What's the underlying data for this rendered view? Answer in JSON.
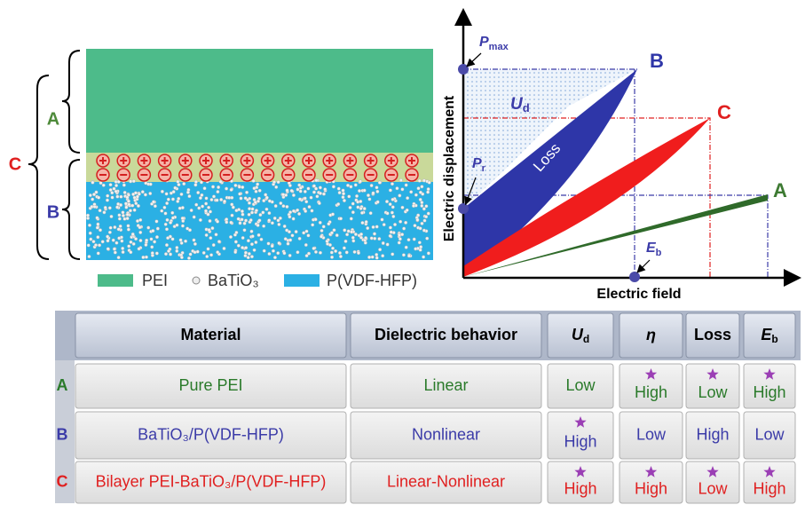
{
  "schematic": {
    "labels": {
      "a": "A",
      "b": "B",
      "c": "C"
    },
    "legend": [
      "PEI",
      "BaTiO₃",
      "P(VDF-HFP)"
    ]
  },
  "graph": {
    "pmax": {
      "main": "P",
      "sub": "max"
    },
    "pr": {
      "main": "P",
      "sub": "r"
    },
    "ud": {
      "main": "U",
      "sub": "d"
    },
    "eb": {
      "main": "E",
      "sub": "b"
    },
    "loss": "Loss",
    "point_b": "B",
    "point_c": "C",
    "point_a": "A",
    "y_axis": "Electric displacement",
    "x_axis": "Electric field"
  },
  "table": {
    "header": [
      "Material",
      "Dielectric behavior",
      {
        "main": "U",
        "sub": "d"
      },
      "η",
      "Loss",
      {
        "main": "E",
        "sub": "b"
      }
    ],
    "rows": [
      {
        "label": "A",
        "material": "Pure PEI",
        "behavior": "Linear",
        "values": [
          {
            "text": "Low",
            "star": false
          },
          {
            "text": "High",
            "star": true
          },
          {
            "text": "Low",
            "star": true
          },
          {
            "text": "High",
            "star": true
          }
        ]
      },
      {
        "label": "B",
        "material": "BaTiO₃/P(VDF-HFP)",
        "behavior": "Nonlinear",
        "values": [
          {
            "text": "High",
            "star": true
          },
          {
            "text": "Low",
            "star": false
          },
          {
            "text": "High",
            "star": false
          },
          {
            "text": "Low",
            "star": false
          }
        ]
      },
      {
        "label": "C",
        "material": "Bilayer PEI-BaTiO₃/P(VDF-HFP)",
        "behavior": "Linear-Nonlinear",
        "values": [
          {
            "text": "High",
            "star": true
          },
          {
            "text": "High",
            "star": true
          },
          {
            "text": "Low",
            "star": true
          },
          {
            "text": "High",
            "star": true
          }
        ]
      }
    ]
  }
}
